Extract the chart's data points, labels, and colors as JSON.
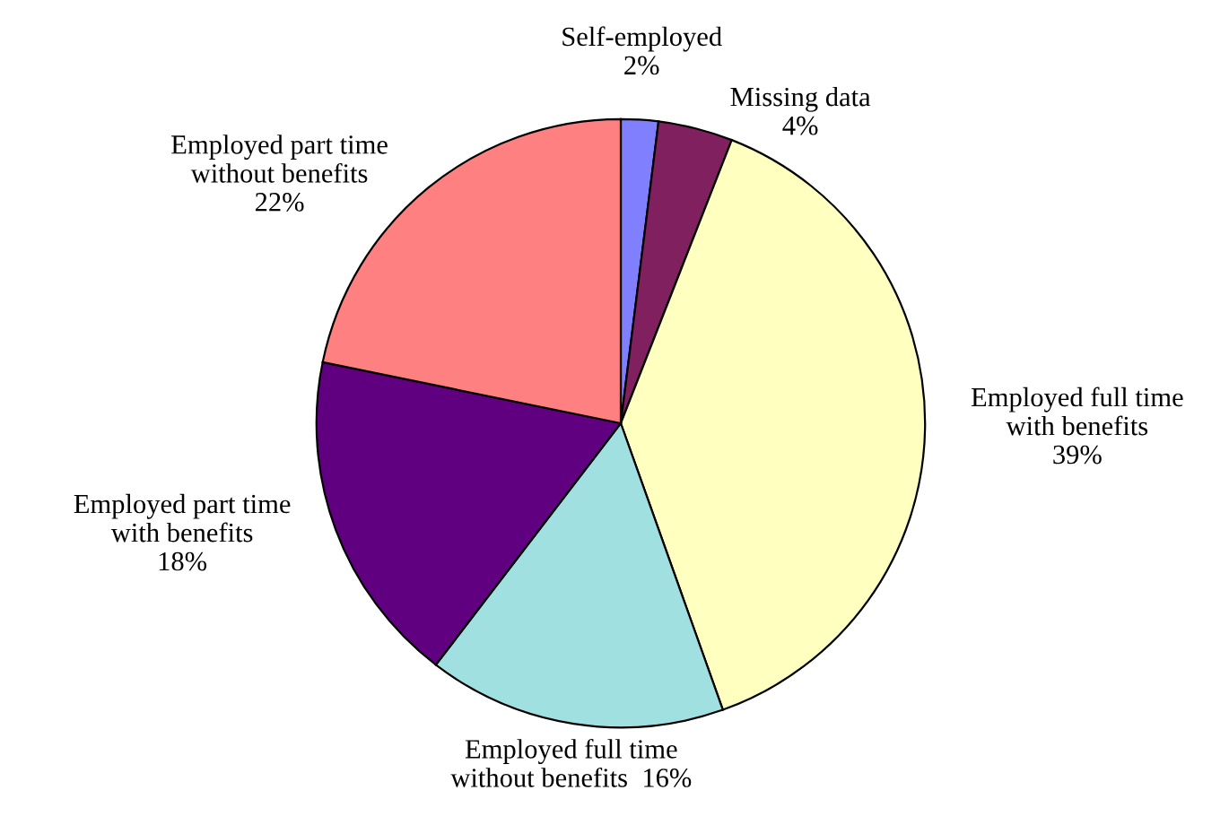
{
  "chart_data": {
    "type": "pie",
    "categories": [
      "Self-employed",
      "Missing data",
      "Employed full time\nwith benefits",
      "Employed full time\nwithout benefits",
      "Employed part time\nwith benefits",
      "Employed part time\nwithout benefits"
    ],
    "values": [
      2,
      4,
      39,
      16,
      18,
      22
    ],
    "value_labels": [
      "2%",
      "4%",
      "39%",
      "16%",
      "18%",
      "22%"
    ],
    "colors": [
      "#8080ff",
      "#80205f",
      "#ffffc0",
      "#a0e0e0",
      "#600080",
      "#ff8080"
    ],
    "legend": false
  }
}
